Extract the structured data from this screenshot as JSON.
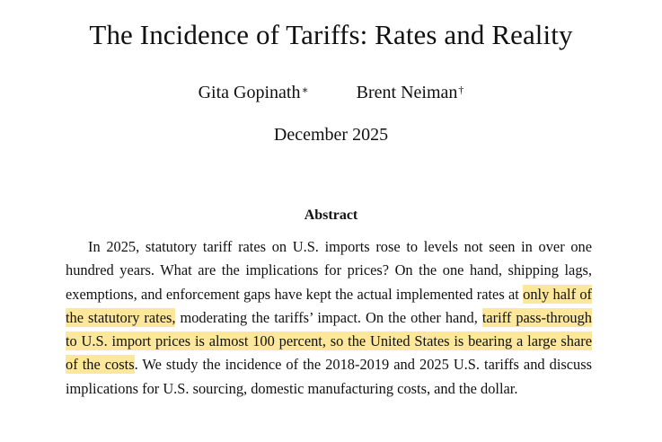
{
  "paper": {
    "title": "The Incidence of Tariffs: Rates and Reality",
    "authors": [
      {
        "name": "Gita Gopinath",
        "mark": "∗"
      },
      {
        "name": "Brent Neiman",
        "mark": "†"
      }
    ],
    "date": "December 2025"
  },
  "abstract": {
    "heading": "Abstract",
    "segments": [
      {
        "text": "In 2025, statutory tariff rates on U.S. imports rose to levels not seen in over one hundred years. What are the implications for prices? On the one hand, shipping lags, exemptions, and enforcement gaps have kept the actual implemented rates at ",
        "highlight": false
      },
      {
        "text": "only half of the statutory rates,",
        "highlight": true
      },
      {
        "text": " moderating the tariffs’ impact. On the other hand, ",
        "highlight": false
      },
      {
        "text": "tariff pass-through to U.S. import prices is almost 100 percent, so the United States is bearing a large share of the costs",
        "highlight": true
      },
      {
        "text": ". We study the incidence of the 2018-2019 and 2025 U.S. tariffs and discuss implications for U.S. sourcing, domestic manufacturing costs, and the dollar.",
        "highlight": false
      }
    ]
  },
  "colors": {
    "highlight": "#fde79a",
    "text": "#111111",
    "background": "#ffffff"
  }
}
